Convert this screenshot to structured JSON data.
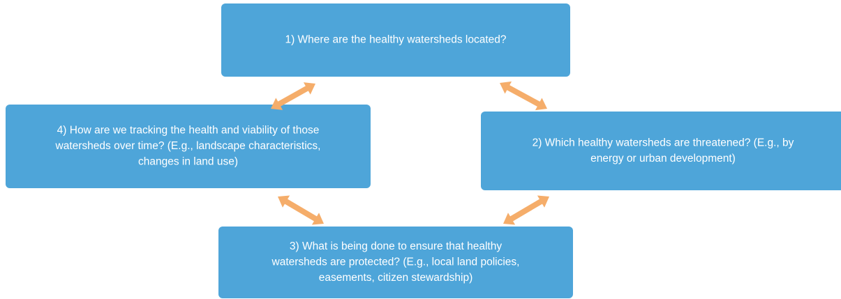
{
  "nodes": [
    {
      "lines": [
        "1) Where are the healthy watersheds located?"
      ]
    },
    {
      "lines": [
        "2) Which healthy watersheds are threatened? (E.g., by",
        "energy or urban development)"
      ]
    },
    {
      "lines": [
        "3) What is being done to ensure that healthy",
        "watersheds are protected? (E.g., local land policies,",
        "easements, citizen stewardship)"
      ]
    },
    {
      "lines": [
        "4) How are we tracking the health and viability of those",
        "watersheds over time? (E.g., landscape characteristics,",
        "changes in land use)"
      ]
    }
  ]
}
